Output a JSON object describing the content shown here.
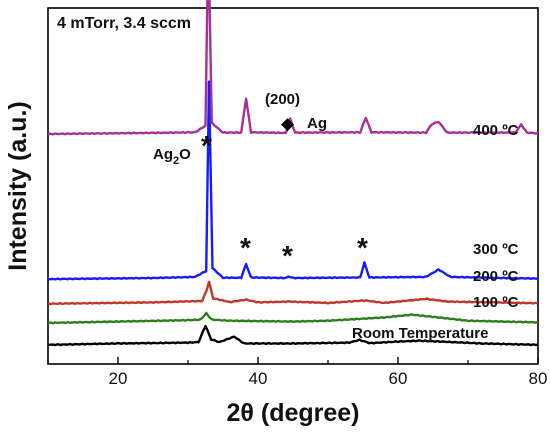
{
  "chart_data": {
    "type": "line",
    "title": "4 mTorr, 3.4 sccm",
    "xlabel": "2θ (degree)",
    "ylabel": "Intensity (a.u.)",
    "xlim": [
      10,
      80
    ],
    "xticks": [
      "20",
      "40",
      "60",
      "80"
    ],
    "ylim": [
      0,
      13
    ],
    "y_ticks_shown": false,
    "grid": false,
    "legend": "none",
    "series": [
      {
        "name": "Room Temperature",
        "color": "#000000",
        "baseline": 0.7,
        "points": [
          [
            10,
            0
          ],
          [
            20,
            0.05
          ],
          [
            30,
            0.08
          ],
          [
            31.5,
            0.1
          ],
          [
            32.5,
            0.7
          ],
          [
            33.3,
            0.2
          ],
          [
            34.5,
            0.1
          ],
          [
            36.6,
            0.3
          ],
          [
            38,
            0.05
          ],
          [
            45,
            0.05
          ],
          [
            53,
            0.08
          ],
          [
            54.5,
            0.18
          ],
          [
            56,
            0.06
          ],
          [
            60,
            0.12
          ],
          [
            63,
            0.15
          ],
          [
            66,
            0.12
          ],
          [
            72,
            0.05
          ],
          [
            80,
            0
          ]
        ]
      },
      {
        "name": "100 ºC",
        "color": "#2f7d1e",
        "baseline": 1.5,
        "points": [
          [
            10,
            0
          ],
          [
            20,
            0.05
          ],
          [
            30,
            0.1
          ],
          [
            31.8,
            0.12
          ],
          [
            32.6,
            0.35
          ],
          [
            33.4,
            0.12
          ],
          [
            36,
            0.08
          ],
          [
            45,
            0.05
          ],
          [
            50,
            0.08
          ],
          [
            58,
            0.2
          ],
          [
            62,
            0.3
          ],
          [
            64,
            0.25
          ],
          [
            70,
            0.08
          ],
          [
            80,
            0.02
          ]
        ]
      },
      {
        "name": "200 ºC",
        "color": "#c0392b",
        "baseline": 2.2,
        "points": [
          [
            10,
            0
          ],
          [
            25,
            0.05
          ],
          [
            32,
            0.1
          ],
          [
            32.6,
            0.45
          ],
          [
            33.0,
            0.8
          ],
          [
            33.6,
            0.2
          ],
          [
            36,
            0.06
          ],
          [
            38.3,
            0.15
          ],
          [
            40,
            0.05
          ],
          [
            44.4,
            0.08
          ],
          [
            50,
            0.03
          ],
          [
            55.3,
            0.12
          ],
          [
            58,
            0.03
          ],
          [
            64,
            0.18
          ],
          [
            67,
            0.08
          ],
          [
            80,
            0.02
          ]
        ]
      },
      {
        "name": "300 ºC",
        "color": "#1a1aff",
        "baseline": 3.1,
        "points": [
          [
            10,
            0
          ],
          [
            25,
            0.04
          ],
          [
            31,
            0.08
          ],
          [
            32.6,
            0.3
          ],
          [
            33.0,
            7.2
          ],
          [
            33.5,
            0.4
          ],
          [
            35,
            0.05
          ],
          [
            37.6,
            0.05
          ],
          [
            38.3,
            0.55
          ],
          [
            39,
            0.06
          ],
          [
            44,
            0.04
          ],
          [
            44.4,
            0.1
          ],
          [
            45,
            0.04
          ],
          [
            54.6,
            0.06
          ],
          [
            55.2,
            0.6
          ],
          [
            55.9,
            0.06
          ],
          [
            64,
            0.08
          ],
          [
            65.8,
            0.35
          ],
          [
            67.5,
            0.08
          ],
          [
            75,
            0.04
          ],
          [
            80,
            0.02
          ]
        ]
      },
      {
        "name": "400 ºC",
        "color": "#a83293",
        "baseline": 8.4,
        "points": [
          [
            10,
            0
          ],
          [
            25,
            0.04
          ],
          [
            31,
            0.06
          ],
          [
            32.5,
            0.3
          ],
          [
            32.9,
            7.3
          ],
          [
            33.4,
            0.4
          ],
          [
            35,
            0.05
          ],
          [
            37.6,
            0.05
          ],
          [
            38.3,
            1.3
          ],
          [
            39,
            0.06
          ],
          [
            44,
            0.04
          ],
          [
            44.6,
            0.55
          ],
          [
            45.3,
            0.05
          ],
          [
            54.6,
            0.06
          ],
          [
            55.4,
            0.6
          ],
          [
            56.2,
            0.06
          ],
          [
            64,
            0.05
          ],
          [
            64.8,
            0.35
          ],
          [
            65.8,
            0.45
          ],
          [
            67,
            0.05
          ],
          [
            76.8,
            0.05
          ],
          [
            77.6,
            0.35
          ],
          [
            78.4,
            0.05
          ],
          [
            80,
            0.02
          ]
        ]
      }
    ],
    "annotations": {
      "ag2o_base": "Ag",
      "ag2o_sub": "2",
      "ag2o_tail": "O",
      "ag_label": "Ag",
      "ag_index": "(200)",
      "star": "*",
      "diamond": "◆"
    }
  }
}
